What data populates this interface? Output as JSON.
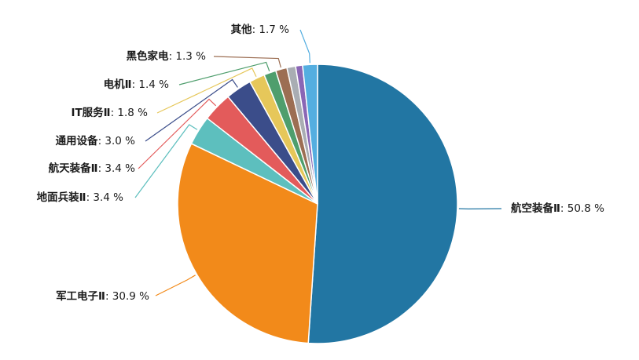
{
  "chart_data": {
    "type": "pie",
    "title": "",
    "slices": [
      {
        "label": "航空装备Ⅱ",
        "value": 50.8,
        "color": "#2276a3"
      },
      {
        "label": "军工电子Ⅱ",
        "value": 30.9,
        "color": "#f28a1a"
      },
      {
        "label": "地面兵装Ⅱ",
        "value": 3.4,
        "color": "#5dbfbe"
      },
      {
        "label": "航天装备Ⅱ",
        "value": 3.4,
        "color": "#e35b5b"
      },
      {
        "label": "通用设备",
        "value": 3.0,
        "color": "#3b4d8a"
      },
      {
        "label": "IT服务Ⅱ",
        "value": 1.8,
        "color": "#e6c75a"
      },
      {
        "label": "电机Ⅱ",
        "value": 1.4,
        "color": "#4f9e6d"
      },
      {
        "label": "黑色家电",
        "value": 1.3,
        "color": "#9c6e53"
      },
      {
        "label": "",
        "value": 1.0,
        "color": "#a9adb3"
      },
      {
        "label": "",
        "value": 0.8,
        "color": "#8a66b5"
      },
      {
        "label": "其他",
        "value": 1.7,
        "color": "#54aee0"
      }
    ],
    "data_labels": [
      {
        "name": "航空装备Ⅱ",
        "text": ": 50.8 %"
      },
      {
        "name": "军工电子Ⅱ",
        "text": ": 30.9 %"
      },
      {
        "name": "地面兵装Ⅱ",
        "text": ": 3.4 %"
      },
      {
        "name": "航天装备Ⅱ",
        "text": ": 3.4 %"
      },
      {
        "name": "通用设备",
        "text": ": 3.0 %"
      },
      {
        "name": "IT服务Ⅱ",
        "text": ": 1.8 %"
      },
      {
        "name": "电机Ⅱ",
        "text": ": 1.4 %"
      },
      {
        "name": "黑色家电",
        "text": ": 1.3 %"
      },
      {
        "name": "其他",
        "text": ": 1.7 %"
      }
    ],
    "start_angle_deg": 0,
    "direction": "clockwise",
    "legend": "none"
  }
}
